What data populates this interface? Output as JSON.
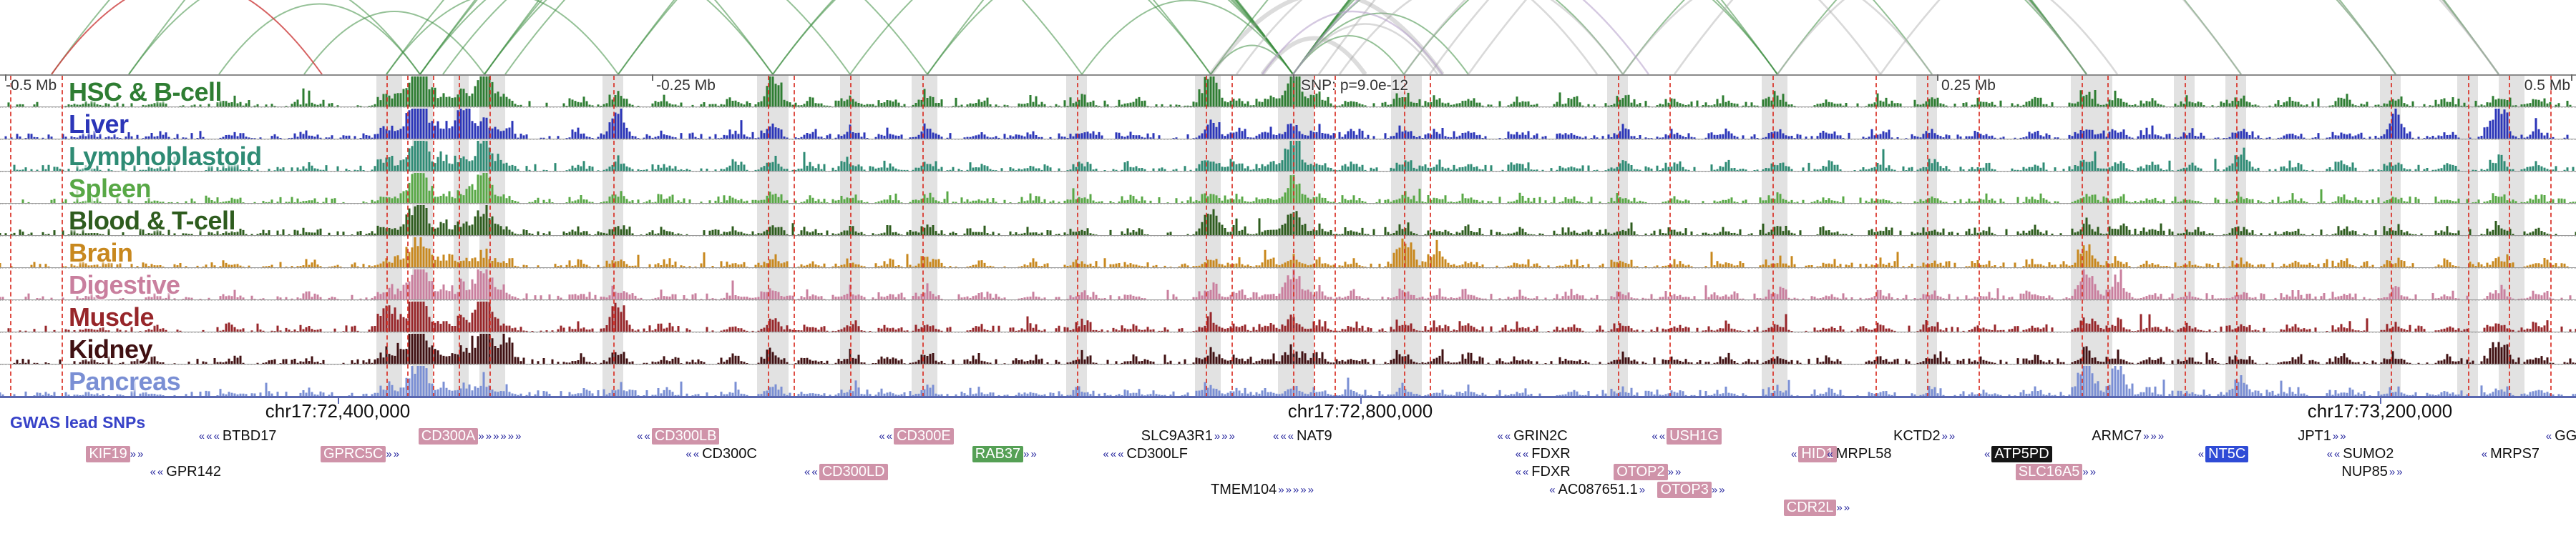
{
  "chart_data": {
    "type": "bar",
    "subtype": "genome-browser-signal-tracks-with-interaction-arcs",
    "title": "",
    "x_axis": {
      "tick_labels": [
        "-0.5 Mb",
        "-0.25 Mb",
        "SNP: p=9.0e-12",
        "0.25 Mb",
        "0.5 Mb"
      ],
      "tick_positions": [
        0.002,
        0.253,
        0.502,
        0.752,
        0.998
      ]
    },
    "genome_coordinates": [
      {
        "label": "chr17:72,400,000",
        "x": 0.131
      },
      {
        "label": "chr17:72,800,000",
        "x": 0.528
      },
      {
        "label": "chr17:73,200,000",
        "x": 0.924
      }
    ],
    "gwas_label": "GWAS lead SNPs",
    "snp_annotation": "SNP: p=9.0e-12",
    "colors": {
      "arc_green": "#3e8e41",
      "arc_gray": "#b3b3b3",
      "arc_heavy_gray": "#9a9a9a",
      "arc_purple": "#b39cc9",
      "arc_red": "#cc3b3b",
      "lead_snp_line": "#d93025",
      "band": "#e2e2e2",
      "axis_line": "#5a68b0",
      "gene_body": "#2a2aa0",
      "hl_pink": "#cf93a9",
      "hl_green": "#55a055",
      "hl_black": "#151515",
      "hl_blue": "#2f4bd6"
    },
    "arcs": [
      [
        0.05,
        0.163,
        "g"
      ],
      [
        0.085,
        0.163,
        "g"
      ],
      [
        0.118,
        0.188,
        "g"
      ],
      [
        0.02,
        0.3,
        "g"
      ],
      [
        0.05,
        0.502,
        "g"
      ],
      [
        0.15,
        0.24,
        "g"
      ],
      [
        0.163,
        0.3,
        "g"
      ],
      [
        0.172,
        0.33,
        "g"
      ],
      [
        0.188,
        0.36,
        "g"
      ],
      [
        0.196,
        0.42,
        "g"
      ],
      [
        0.15,
        0.47,
        "g"
      ],
      [
        0.163,
        0.502,
        "g"
      ],
      [
        0.188,
        0.502,
        "g"
      ],
      [
        0.24,
        0.502,
        "g"
      ],
      [
        0.3,
        0.502,
        "g"
      ],
      [
        0.33,
        0.502,
        "g"
      ],
      [
        0.36,
        0.502,
        "g"
      ],
      [
        0.3,
        0.47,
        "g"
      ],
      [
        0.42,
        0.502,
        "g"
      ],
      [
        0.47,
        0.502,
        "g"
      ],
      [
        0.502,
        0.545,
        "g"
      ],
      [
        0.502,
        0.57,
        "g"
      ],
      [
        0.502,
        0.63,
        "g"
      ],
      [
        0.502,
        0.69,
        "g"
      ],
      [
        0.502,
        0.75,
        "g"
      ],
      [
        0.502,
        0.81,
        "g"
      ],
      [
        0.47,
        0.81,
        "g"
      ],
      [
        0.502,
        0.87,
        "g"
      ],
      [
        0.502,
        0.93,
        "g"
      ],
      [
        0.502,
        0.97,
        "g"
      ],
      [
        0.545,
        0.69,
        "g"
      ],
      [
        0.63,
        0.81,
        "g"
      ],
      [
        0.69,
        0.93,
        "g"
      ],
      [
        0.163,
        0.81,
        "g"
      ],
      [
        0.188,
        0.97,
        "g"
      ],
      [
        0.24,
        0.69,
        "g"
      ],
      [
        0.36,
        0.81,
        "g"
      ],
      [
        0.502,
        0.558,
        "y"
      ],
      [
        0.52,
        0.63,
        "y"
      ],
      [
        0.545,
        0.73,
        "y"
      ],
      [
        0.555,
        0.81,
        "y"
      ],
      [
        0.57,
        0.87,
        "y"
      ],
      [
        0.63,
        0.75,
        "y"
      ],
      [
        0.65,
        0.93,
        "y"
      ],
      [
        0.69,
        0.822,
        "y"
      ],
      [
        0.73,
        0.97,
        "y"
      ],
      [
        0.48,
        0.62,
        "y"
      ],
      [
        0.512,
        0.97,
        "y"
      ],
      [
        0.49,
        0.53,
        "Y"
      ],
      [
        0.47,
        0.56,
        "Y"
      ],
      [
        0.49,
        0.56,
        "p"
      ],
      [
        0.502,
        0.64,
        "p"
      ],
      [
        0.02,
        0.125,
        "r"
      ]
    ],
    "lead_snp_lines": [
      0.004,
      0.024,
      0.15,
      0.158,
      0.168,
      0.178,
      0.19,
      0.238,
      0.298,
      0.308,
      0.33,
      0.358,
      0.418,
      0.468,
      0.478,
      0.502,
      0.51,
      0.518,
      0.545,
      0.555,
      0.628,
      0.648,
      0.688,
      0.728,
      0.748,
      0.768,
      0.808,
      0.818,
      0.848,
      0.868,
      0.928,
      0.958,
      0.974,
      0.99
    ],
    "highlight_bands": [
      [
        0.146,
        0.01
      ],
      [
        0.16,
        0.008
      ],
      [
        0.176,
        0.006
      ],
      [
        0.186,
        0.01
      ],
      [
        0.234,
        0.008
      ],
      [
        0.294,
        0.012
      ],
      [
        0.326,
        0.008
      ],
      [
        0.354,
        0.01
      ],
      [
        0.414,
        0.008
      ],
      [
        0.464,
        0.01
      ],
      [
        0.496,
        0.014
      ],
      [
        0.54,
        0.012
      ],
      [
        0.624,
        0.008
      ],
      [
        0.684,
        0.01
      ],
      [
        0.744,
        0.008
      ],
      [
        0.804,
        0.016
      ],
      [
        0.844,
        0.008
      ],
      [
        0.864,
        0.008
      ],
      [
        0.924,
        0.008
      ],
      [
        0.954,
        0.008
      ],
      [
        0.97,
        0.01
      ]
    ],
    "common_peaks": [
      [
        0.035,
        0.15
      ],
      [
        0.06,
        0.12
      ],
      [
        0.09,
        0.18
      ],
      [
        0.12,
        0.15
      ],
      [
        0.15,
        0.45
      ],
      [
        0.158,
        0.5
      ],
      [
        0.163,
        0.85
      ],
      [
        0.172,
        0.5
      ],
      [
        0.18,
        0.55
      ],
      [
        0.188,
        0.7
      ],
      [
        0.196,
        0.35
      ],
      [
        0.225,
        0.2
      ],
      [
        0.24,
        0.45
      ],
      [
        0.258,
        0.2
      ],
      [
        0.285,
        0.25
      ],
      [
        0.3,
        0.5
      ],
      [
        0.315,
        0.2
      ],
      [
        0.33,
        0.35
      ],
      [
        0.345,
        0.2
      ],
      [
        0.36,
        0.4
      ],
      [
        0.38,
        0.2
      ],
      [
        0.4,
        0.18
      ],
      [
        0.42,
        0.3
      ],
      [
        0.44,
        0.2
      ],
      [
        0.47,
        0.55
      ],
      [
        0.48,
        0.3
      ],
      [
        0.492,
        0.3
      ],
      [
        0.502,
        0.6
      ],
      [
        0.512,
        0.35
      ],
      [
        0.525,
        0.25
      ],
      [
        0.545,
        0.4
      ],
      [
        0.558,
        0.25
      ],
      [
        0.57,
        0.3
      ],
      [
        0.59,
        0.2
      ],
      [
        0.61,
        0.2
      ],
      [
        0.63,
        0.3
      ],
      [
        0.65,
        0.25
      ],
      [
        0.67,
        0.2
      ],
      [
        0.69,
        0.35
      ],
      [
        0.71,
        0.2
      ],
      [
        0.73,
        0.25
      ],
      [
        0.75,
        0.3
      ],
      [
        0.77,
        0.2
      ],
      [
        0.79,
        0.25
      ],
      [
        0.81,
        0.5
      ],
      [
        0.822,
        0.35
      ],
      [
        0.835,
        0.25
      ],
      [
        0.85,
        0.2
      ],
      [
        0.87,
        0.3
      ],
      [
        0.89,
        0.2
      ],
      [
        0.91,
        0.25
      ],
      [
        0.93,
        0.3
      ],
      [
        0.95,
        0.2
      ],
      [
        0.97,
        0.4
      ],
      [
        0.985,
        0.3
      ]
    ],
    "tracks": [
      {
        "name": "HSC & B-cell",
        "color": "#2e7d32",
        "common_scale": 0.9,
        "extra_peaks": [
          [
            0.163,
            0.9
          ],
          [
            0.188,
            0.7
          ],
          [
            0.47,
            0.8
          ],
          [
            0.502,
            0.85
          ],
          [
            0.3,
            0.5
          ]
        ]
      },
      {
        "name": "Liver",
        "color": "#2b35b8",
        "common_scale": 0.8,
        "extra_peaks": [
          [
            0.163,
            1.0
          ],
          [
            0.18,
            0.8
          ],
          [
            0.24,
            0.6
          ],
          [
            0.93,
            0.55
          ],
          [
            0.97,
            0.9
          ]
        ]
      },
      {
        "name": "Lymphoblastoid",
        "color": "#2e8b74",
        "common_scale": 0.75,
        "extra_peaks": [
          [
            0.163,
            0.85
          ],
          [
            0.502,
            0.7
          ],
          [
            0.87,
            0.5
          ],
          [
            0.188,
            0.6
          ]
        ]
      },
      {
        "name": "Spleen",
        "color": "#58a846",
        "common_scale": 0.6,
        "extra_peaks": [
          [
            0.163,
            0.8
          ],
          [
            0.188,
            0.6
          ],
          [
            0.502,
            0.55
          ]
        ]
      },
      {
        "name": "Blood & T-cell",
        "color": "#2e5c1e",
        "common_scale": 0.65,
        "extra_peaks": [
          [
            0.163,
            0.7
          ],
          [
            0.47,
            0.55
          ],
          [
            0.502,
            0.6
          ],
          [
            0.188,
            0.5
          ]
        ]
      },
      {
        "name": "Brain",
        "color": "#c8881e",
        "common_scale": 0.55,
        "extra_peaks": [
          [
            0.545,
            0.7
          ],
          [
            0.558,
            0.5
          ],
          [
            0.163,
            0.5
          ],
          [
            0.81,
            0.5
          ]
        ]
      },
      {
        "name": "Digestive",
        "color": "#c97f9e",
        "common_scale": 0.7,
        "extra_peaks": [
          [
            0.163,
            0.95
          ],
          [
            0.81,
            0.75
          ],
          [
            0.822,
            0.55
          ],
          [
            0.502,
            0.55
          ],
          [
            0.188,
            0.65
          ]
        ]
      },
      {
        "name": "Muscle",
        "color": "#97262a",
        "common_scale": 0.7,
        "extra_peaks": [
          [
            0.15,
            0.6
          ],
          [
            0.163,
            1.0
          ],
          [
            0.188,
            0.8
          ],
          [
            0.24,
            0.55
          ]
        ]
      },
      {
        "name": "Kidney",
        "color": "#401012",
        "common_scale": 0.7,
        "extra_peaks": [
          [
            0.163,
            1.0
          ],
          [
            0.188,
            0.9
          ],
          [
            0.196,
            0.55
          ],
          [
            0.97,
            0.55
          ]
        ]
      },
      {
        "name": "Pancreas",
        "color": "#7a8fd4",
        "common_scale": 0.55,
        "extra_peaks": [
          [
            0.81,
            0.95
          ],
          [
            0.822,
            0.7
          ],
          [
            0.163,
            0.55
          ],
          [
            0.87,
            0.5
          ]
        ]
      }
    ],
    "genes": [
      {
        "name": "",
        "x": 0.001,
        "row": 0,
        "strand": "-",
        "pre": 4,
        "post": 0,
        "hl": "none"
      },
      {
        "name": "BTBD17",
        "x": 0.088,
        "row": 0,
        "strand": "-",
        "pre": 3,
        "post": 0,
        "hl": "none"
      },
      {
        "name": "CD300A",
        "x": 0.163,
        "row": 0,
        "strand": "+",
        "pre": 0,
        "post": 6,
        "hl": "pink"
      },
      {
        "name": "CD300LB",
        "x": 0.255,
        "row": 0,
        "strand": "-",
        "pre": 2,
        "post": 0,
        "hl": "pink"
      },
      {
        "name": "CD300E",
        "x": 0.349,
        "row": 0,
        "strand": "-",
        "pre": 2,
        "post": 0,
        "hl": "pink"
      },
      {
        "name": "SLC9A3R1",
        "x": 0.443,
        "row": 0,
        "strand": "+",
        "pre": 0,
        "post": 3,
        "hl": "none"
      },
      {
        "name": "NAT9",
        "x": 0.505,
        "row": 0,
        "strand": "-",
        "pre": 3,
        "post": 0,
        "hl": "none"
      },
      {
        "name": "GRIN2C",
        "x": 0.589,
        "row": 0,
        "strand": "-",
        "pre": 2,
        "post": 0,
        "hl": "none"
      },
      {
        "name": "USH1G",
        "x": 0.649,
        "row": 0,
        "strand": "-",
        "pre": 2,
        "post": 0,
        "hl": "pink"
      },
      {
        "name": "KCTD2",
        "x": 0.735,
        "row": 0,
        "strand": "+",
        "pre": 0,
        "post": 2,
        "hl": "none"
      },
      {
        "name": "ARMC7",
        "x": 0.812,
        "row": 0,
        "strand": "+",
        "pre": 0,
        "post": 3,
        "hl": "none"
      },
      {
        "name": "JPT1",
        "x": 0.892,
        "row": 0,
        "strand": "+",
        "pre": 0,
        "post": 2,
        "hl": "none"
      },
      {
        "name": "GG",
        "x": 0.993,
        "row": 0,
        "strand": "-",
        "pre": 1,
        "post": 0,
        "hl": "none"
      },
      {
        "name": "KIF19",
        "x": 0.034,
        "row": 1,
        "strand": "+",
        "pre": 0,
        "post": 2,
        "hl": "pink"
      },
      {
        "name": "GPRC5C",
        "x": 0.125,
        "row": 1,
        "strand": "+",
        "pre": 0,
        "post": 2,
        "hl": "pink"
      },
      {
        "name": "CD300C",
        "x": 0.274,
        "row": 1,
        "strand": "-",
        "pre": 2,
        "post": 0,
        "hl": "none"
      },
      {
        "name": "RAB37",
        "x": 0.378,
        "row": 1,
        "strand": "+",
        "pre": 0,
        "post": 2,
        "hl": "green"
      },
      {
        "name": "CD300LF",
        "x": 0.439,
        "row": 1,
        "strand": "-",
        "pre": 3,
        "post": 0,
        "hl": "none"
      },
      {
        "name": "FDXR",
        "x": 0.596,
        "row": 1,
        "strand": "-",
        "pre": 2,
        "post": 0,
        "hl": "none"
      },
      {
        "name": "HID1",
        "x": 0.7,
        "row": 1,
        "strand": "-",
        "pre": 1,
        "post": 0,
        "hl": "pink"
      },
      {
        "name": "MRPL58",
        "x": 0.714,
        "row": 1,
        "strand": "-",
        "pre": 1,
        "post": 0,
        "hl": "none"
      },
      {
        "name": "ATP5PD",
        "x": 0.775,
        "row": 1,
        "strand": "-",
        "pre": 1,
        "post": 0,
        "hl": "black"
      },
      {
        "name": "NT5C",
        "x": 0.858,
        "row": 1,
        "strand": "-",
        "pre": 1,
        "post": 0,
        "hl": "blue"
      },
      {
        "name": "SUMO2",
        "x": 0.911,
        "row": 1,
        "strand": "-",
        "pre": 2,
        "post": 0,
        "hl": "none"
      },
      {
        "name": "MRPS7",
        "x": 0.968,
        "row": 1,
        "strand": "-",
        "pre": 1,
        "post": 0,
        "hl": "none"
      },
      {
        "name": "GPR142",
        "x": 0.066,
        "row": 2,
        "strand": "-",
        "pre": 2,
        "post": 0,
        "hl": "none"
      },
      {
        "name": "CD300LD",
        "x": 0.32,
        "row": 2,
        "strand": "-",
        "pre": 2,
        "post": 0,
        "hl": "pink"
      },
      {
        "name": "FDXR",
        "x": 0.596,
        "row": 2,
        "strand": "-",
        "pre": 2,
        "post": 0,
        "hl": "none"
      },
      {
        "name": "OTOP2",
        "x": 0.627,
        "row": 2,
        "strand": "+",
        "pre": 0,
        "post": 2,
        "hl": "pink"
      },
      {
        "name": "SLC16A5",
        "x": 0.783,
        "row": 2,
        "strand": "+",
        "pre": 0,
        "post": 2,
        "hl": "pink"
      },
      {
        "name": "NUP85",
        "x": 0.909,
        "row": 2,
        "strand": "+",
        "pre": 0,
        "post": 2,
        "hl": "none"
      },
      {
        "name": "TMEM104",
        "x": 0.47,
        "row": 3,
        "strand": "+",
        "pre": 0,
        "post": 5,
        "hl": "none"
      },
      {
        "name": "AC087651.1",
        "x": 0.602,
        "row": 3,
        "strand": "+",
        "pre": 1,
        "post": 1,
        "hl": "none"
      },
      {
        "name": "OTOP3",
        "x": 0.644,
        "row": 3,
        "strand": "+",
        "pre": 0,
        "post": 2,
        "hl": "pink"
      },
      {
        "name": "CDR2L",
        "x": 0.693,
        "row": 4,
        "strand": "+",
        "pre": 0,
        "post": 2,
        "hl": "pink"
      }
    ]
  }
}
